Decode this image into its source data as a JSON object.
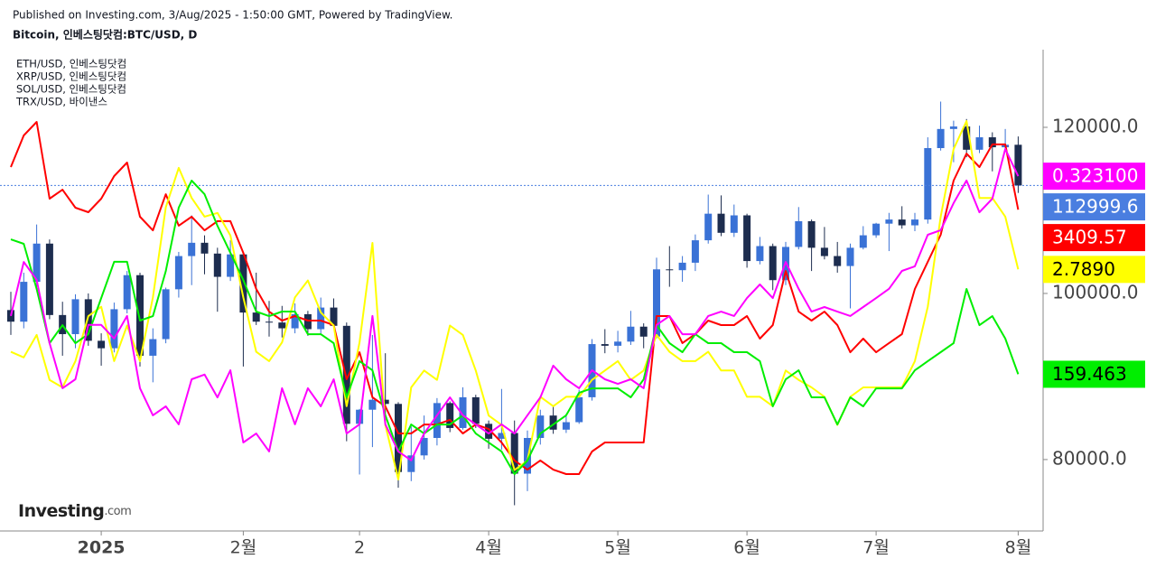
{
  "chart_data": {
    "type": "candlestick",
    "subtitle": "Published on Investing.com, 3/Aug/2025 - 1:50:00 GMT, Powered by TradingView.",
    "title": "Bitcoin, 인베스팅닷컴:BTC/USD, D",
    "watermark": [
      "Investing",
      ".com"
    ],
    "categories": [
      null,
      null,
      null,
      null,
      null,
      null,
      null,
      "2025",
      null,
      null,
      null,
      null,
      null,
      null,
      null,
      null,
      null,
      null,
      "2월",
      null,
      null,
      null,
      null,
      null,
      null,
      null,
      null,
      "2",
      null,
      null,
      null,
      null,
      null,
      null,
      null,
      null,
      null,
      "4월",
      null,
      null,
      null,
      null,
      null,
      null,
      null,
      null,
      null,
      "5월",
      null,
      null,
      null,
      null,
      null,
      null,
      null,
      null,
      null,
      "6월",
      null,
      null,
      null,
      null,
      null,
      null,
      null,
      null,
      null,
      "7월",
      null,
      null,
      null,
      null,
      null,
      null,
      null,
      null,
      null,
      null,
      "8월"
    ],
    "open": [
      98000,
      96600,
      101400,
      106000,
      97400,
      95100,
      99300,
      94300,
      93400,
      98100,
      102200,
      92500,
      94500,
      100500,
      104500,
      106100,
      104800,
      102000,
      104700,
      97700,
      96600,
      96500,
      95800,
      97500,
      95700,
      98300,
      96100,
      84300,
      86000,
      87200,
      86700,
      78500,
      80500,
      82600,
      86800,
      83800,
      87500,
      84300,
      82500,
      83200,
      78300,
      82600,
      85300,
      83600,
      84500,
      87500,
      93900,
      93700,
      94200,
      96000,
      94800,
      102900,
      102800,
      103700,
      106400,
      109600,
      107300,
      109400,
      103900,
      105700,
      101600,
      105600,
      108700,
      105500,
      104500,
      103300,
      105500,
      107000,
      108400,
      108900,
      108200,
      108900,
      117500,
      119800,
      120100,
      117300,
      118800,
      117600,
      117900
    ],
    "high": [
      100200,
      102500,
      108300,
      106500,
      99000,
      99900,
      100000,
      95200,
      98900,
      102700,
      102500,
      95800,
      100700,
      105000,
      109400,
      107000,
      105500,
      106400,
      104900,
      102500,
      99100,
      98500,
      98800,
      97900,
      99500,
      99400,
      96500,
      86100,
      95000,
      92800,
      86900,
      84000,
      85300,
      87400,
      87000,
      88700,
      87800,
      84700,
      88500,
      84700,
      83500,
      86000,
      86400,
      85500,
      88400,
      94500,
      95700,
      95500,
      97900,
      96400,
      104300,
      105700,
      104500,
      107100,
      111900,
      111800,
      110700,
      109600,
      106800,
      106000,
      106200,
      110400,
      108900,
      108000,
      106200,
      106000,
      108100,
      108500,
      109700,
      110500,
      109700,
      118800,
      123100,
      120800,
      121000,
      120200,
      119400,
      119800,
      118900
    ],
    "low": [
      95000,
      95800,
      100800,
      96900,
      92500,
      93400,
      93700,
      91300,
      92900,
      97600,
      91200,
      89300,
      94000,
      99500,
      101000,
      102300,
      97800,
      101500,
      91200,
      96200,
      94800,
      94700,
      95200,
      94900,
      95100,
      95800,
      82200,
      78200,
      81500,
      84700,
      76600,
      77400,
      80000,
      81700,
      83300,
      83600,
      83800,
      81300,
      81200,
      74500,
      76200,
      81800,
      83100,
      83200,
      84300,
      87100,
      92800,
      92900,
      93800,
      93400,
      94600,
      100800,
      101400,
      102700,
      106000,
      106900,
      106800,
      103100,
      103500,
      100400,
      101000,
      105300,
      102700,
      104100,
      102500,
      98200,
      105300,
      106700,
      105100,
      107800,
      107500,
      108400,
      117200,
      115800,
      116400,
      116900,
      114700,
      117300,
      112100
    ],
    "close": [
      96600,
      101400,
      106000,
      97400,
      95100,
      99300,
      94300,
      93400,
      98100,
      102200,
      92500,
      94500,
      100500,
      104500,
      106100,
      104800,
      102000,
      104700,
      97700,
      96600,
      96500,
      95800,
      97500,
      95700,
      98300,
      96100,
      84300,
      86000,
      87200,
      86700,
      78500,
      80500,
      82600,
      86800,
      83800,
      87500,
      84300,
      82500,
      83200,
      78300,
      82600,
      85300,
      83600,
      84500,
      87500,
      93900,
      93700,
      94200,
      96000,
      94800,
      102900,
      102800,
      103700,
      106400,
      109600,
      107300,
      109400,
      103900,
      105700,
      101600,
      105600,
      108700,
      105500,
      104500,
      103300,
      105500,
      107000,
      108400,
      108900,
      108200,
      108900,
      117500,
      119800,
      120100,
      117300,
      118800,
      117600,
      117900,
      112999.6
    ],
    "up_color": "#3a72d6",
    "down_color": "#1d2d4f",
    "last_color": "#4a7ee0",
    "ylim": [
      71400,
      129350
    ],
    "yticks": [
      {
        "value": 80000,
        "label": "80000.0"
      },
      {
        "value": 100000,
        "label": "100000.0"
      },
      {
        "value": 120000,
        "label": "120000.0"
      }
    ],
    "series": [
      {
        "type": "line",
        "name": "ETH/USD, 인베스팅닷컴",
        "color": "#ff0000",
        "text_color": "#ffffff",
        "ylim": [
          1053,
          4583
        ],
        "values": [
          3722,
          3954,
          4053,
          3490,
          3556,
          3424,
          3391,
          3490,
          3656,
          3755,
          3358,
          3258,
          3523,
          3292,
          3358,
          3258,
          3325,
          3325,
          3093,
          2828,
          2662,
          2596,
          2629,
          2596,
          2596,
          2563,
          2166,
          2364,
          2033,
          1967,
          1768,
          1768,
          1834,
          1834,
          1868,
          1768,
          1834,
          1801,
          1702,
          1570,
          1503,
          1570,
          1503,
          1470,
          1470,
          1636,
          1702,
          1702,
          1702,
          1702,
          2629,
          2629,
          2431,
          2497,
          2596,
          2563,
          2563,
          2629,
          2464,
          2563,
          2960,
          2662,
          2596,
          2662,
          2563,
          2364,
          2464,
          2364,
          2431,
          2497,
          2828,
          3027,
          3225,
          3623,
          3821,
          3722,
          3888,
          3888,
          3409.57
        ]
      },
      {
        "type": "line",
        "name": "XRP/USD, 인베스팅닷컴",
        "color": "#ffff00",
        "text_color": "#000000",
        "ylim": [
          1.395,
          3.96
        ],
        "values": [
          2.35,
          2.32,
          2.44,
          2.2,
          2.16,
          2.3,
          2.54,
          2.59,
          2.3,
          2.49,
          2.3,
          2.64,
          3.12,
          3.33,
          3.17,
          3.07,
          3.09,
          2.97,
          2.64,
          2.35,
          2.3,
          2.4,
          2.64,
          2.73,
          2.56,
          2.49,
          2.06,
          2.4,
          2.93,
          1.96,
          1.67,
          2.16,
          2.25,
          2.2,
          2.49,
          2.44,
          2.25,
          2.01,
          1.96,
          1.72,
          1.77,
          2.11,
          2.06,
          2.11,
          2.11,
          2.2,
          2.25,
          2.3,
          2.2,
          2.25,
          2.44,
          2.35,
          2.3,
          2.3,
          2.35,
          2.25,
          2.25,
          2.11,
          2.11,
          2.06,
          2.25,
          2.2,
          2.16,
          2.11,
          1.96,
          2.11,
          2.16,
          2.16,
          2.16,
          2.16,
          2.3,
          2.59,
          3.07,
          3.43,
          3.58,
          3.17,
          3.17,
          3.07,
          2.789
        ],
        "value_labels": {
          "78": "2.7890"
        }
      },
      {
        "type": "line",
        "name": "SOL/USD, 인베스팅닷컴",
        "color": "#00ee00",
        "text_color": "#000000",
        "ylim": [
          77.6,
          329
        ],
        "values": [
          229.9,
          227.6,
          204.0,
          175.7,
          185.1,
          175.7,
          180.4,
          199.3,
          218.2,
          218.2,
          187.5,
          189.8,
          213.4,
          246.5,
          260.6,
          253.5,
          237.0,
          222.9,
          208.7,
          192.2,
          189.8,
          192.2,
          192.2,
          180.4,
          180.4,
          175.7,
          147.4,
          166.3,
          161.5,
          138.0,
          119.1,
          133.2,
          128.5,
          133.2,
          133.2,
          138.0,
          128.5,
          123.8,
          119.1,
          107.3,
          114.4,
          128.5,
          133.2,
          138.0,
          149.8,
          152.1,
          152.1,
          152.1,
          147.4,
          156.8,
          185.1,
          175.7,
          171.0,
          180.4,
          175.7,
          175.7,
          171.0,
          171.0,
          166.3,
          142.7,
          156.8,
          161.5,
          147.4,
          147.4,
          133.2,
          147.4,
          142.7,
          152.1,
          152.1,
          152.1,
          161.5,
          166.3,
          171.0,
          175.7,
          204.0,
          185.1,
          189.8,
          178.1,
          159.463
        ]
      },
      {
        "type": "line",
        "name": "TRX/USD, 바이낸스",
        "color": "#ff00ff",
        "text_color": "#ffffff",
        "ylim": [
          0.1924,
          0.3697
        ],
        "values": [
          0.2716,
          0.2915,
          0.2849,
          0.2616,
          0.245,
          0.2483,
          0.2683,
          0.2683,
          0.2633,
          0.2716,
          0.245,
          0.235,
          0.2383,
          0.2317,
          0.2483,
          0.25,
          0.2416,
          0.2516,
          0.225,
          0.2283,
          0.2217,
          0.245,
          0.2317,
          0.245,
          0.2383,
          0.2483,
          0.2283,
          0.2317,
          0.2716,
          0.2317,
          0.2217,
          0.2184,
          0.2283,
          0.235,
          0.2416,
          0.235,
          0.2317,
          0.2283,
          0.2317,
          0.2283,
          0.235,
          0.2416,
          0.2533,
          0.2483,
          0.245,
          0.2516,
          0.2483,
          0.2466,
          0.2483,
          0.245,
          0.2683,
          0.2716,
          0.2649,
          0.2649,
          0.2716,
          0.2732,
          0.2716,
          0.2782,
          0.2832,
          0.2782,
          0.2915,
          0.2816,
          0.2732,
          0.2749,
          0.2732,
          0.2716,
          0.2749,
          0.2782,
          0.2816,
          0.2882,
          0.2899,
          0.3015,
          0.3032,
          0.3132,
          0.3215,
          0.3098,
          0.3148,
          0.3331,
          0.3231
        ],
        "value_labels": {
          "78": "0.323100"
        }
      }
    ]
  }
}
